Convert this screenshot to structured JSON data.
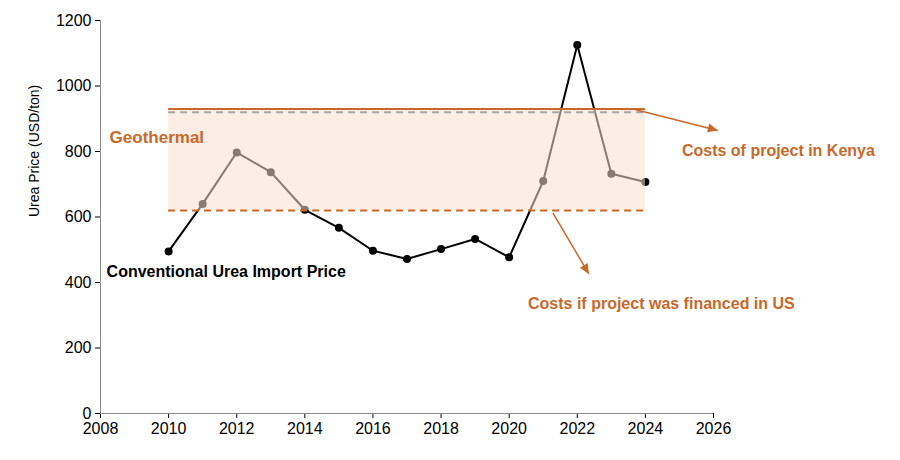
{
  "chart_data": {
    "type": "line",
    "y_label": "Urea Price (USD/ton)",
    "x": [
      2010,
      2011,
      2012,
      2013,
      2014,
      2015,
      2016,
      2017,
      2018,
      2019,
      2020,
      2021,
      2022,
      2023,
      2024
    ],
    "series": [
      {
        "name": "Conventional Urea Import Price",
        "color": "#000000",
        "marker": "circle",
        "values": [
          495,
          640,
          797,
          737,
          622,
          567,
          497,
          472,
          502,
          533,
          477,
          710,
          1125,
          732,
          707
        ]
      }
    ],
    "xlim": [
      2008,
      2026
    ],
    "xticks": [
      2008,
      2010,
      2012,
      2014,
      2016,
      2018,
      2020,
      2022,
      2024,
      2026
    ],
    "ylim": [
      0,
      1200
    ],
    "yticks": [
      0,
      200,
      400,
      600,
      800,
      1000,
      1200
    ],
    "band": {
      "label": "Geothermal",
      "x": [
        2010,
        2024
      ],
      "lower": 620,
      "upper": 930,
      "color": "#fbe0cf"
    },
    "reference_lines": [
      {
        "label": "Costs of project in Kenya",
        "value": 930,
        "color": "#c8692a",
        "line_style": "solid"
      },
      {
        "value": 920,
        "color": "#a6a6a6",
        "line_style": "dashed"
      },
      {
        "label": "Costs if project was financed in US",
        "value": 620,
        "color": "#c8692a",
        "line_style": "dashed"
      }
    ],
    "grid": false
  }
}
